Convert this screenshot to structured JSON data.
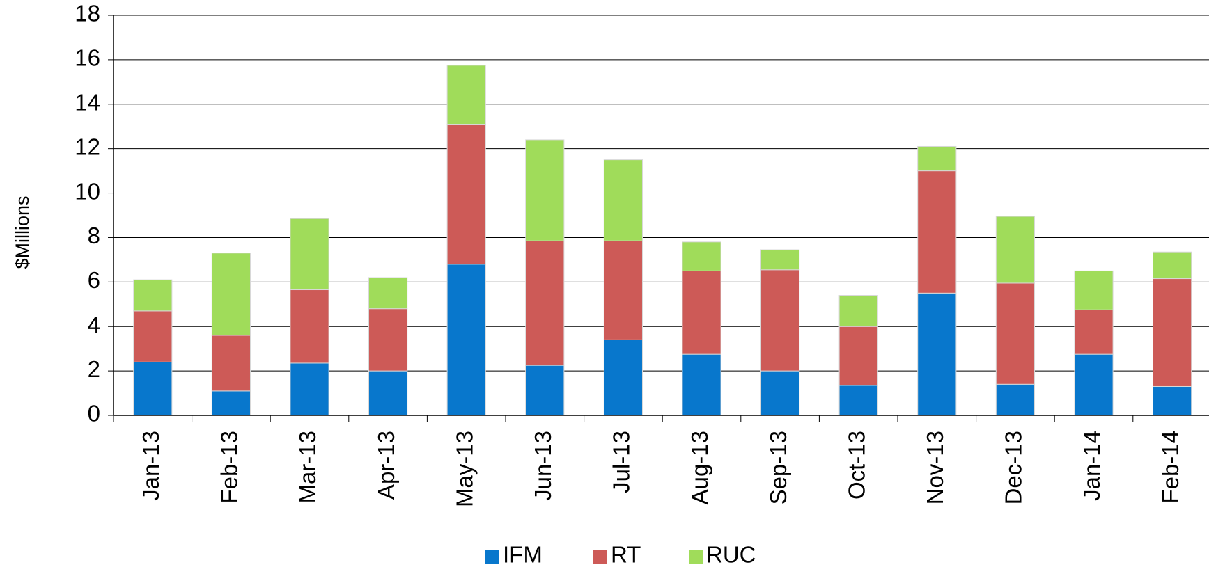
{
  "chart_data": {
    "type": "stacked_bar",
    "y_label": "$Millions",
    "categories": [
      "Jan-13",
      "Feb-13",
      "Mar-13",
      "Apr-13",
      "May-13",
      "Jun-13",
      "Jul-13",
      "Aug-13",
      "Sep-13",
      "Oct-13",
      "Nov-13",
      "Dec-13",
      "Jan-14",
      "Feb-14"
    ],
    "series": [
      {
        "name": "IFM",
        "color": "#0877cc",
        "values": [
          2.4,
          1.1,
          2.35,
          2.0,
          6.8,
          2.25,
          3.4,
          2.75,
          2.0,
          1.35,
          5.5,
          1.4,
          2.75,
          1.3
        ]
      },
      {
        "name": "RT",
        "color": "#cd5a57",
        "values": [
          2.3,
          2.5,
          3.3,
          2.8,
          6.3,
          5.6,
          4.45,
          3.75,
          4.55,
          2.65,
          5.5,
          4.55,
          2.0,
          4.85
        ]
      },
      {
        "name": "RUC",
        "color": "#a0dc5a",
        "values": [
          1.4,
          3.7,
          3.2,
          1.4,
          2.65,
          4.55,
          3.65,
          1.3,
          0.9,
          1.4,
          1.1,
          3.0,
          1.75,
          1.2
        ]
      }
    ],
    "ylim": [
      0,
      18
    ],
    "yticks": [
      0,
      2,
      4,
      6,
      8,
      10,
      12,
      14,
      16,
      18
    ],
    "grid": true,
    "legend": "bottom"
  }
}
